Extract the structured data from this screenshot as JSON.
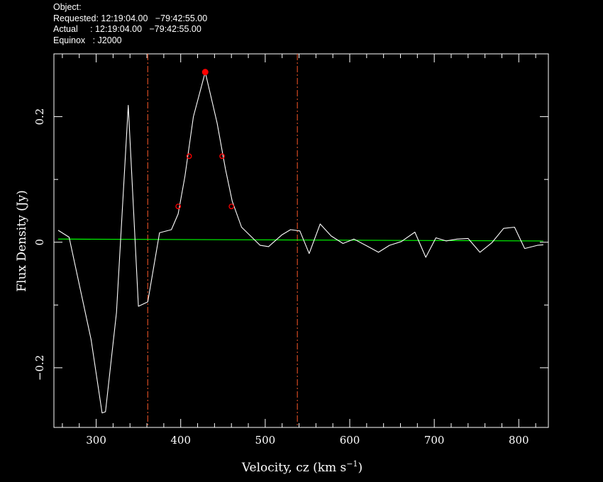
{
  "header": {
    "object": "Object:",
    "requested": "Requested: 12:19:04.00   −79:42:55.00",
    "actual": "Actual     : 12:19:04.00   −79:42:55.00",
    "equinox": "Equinox   : J2000"
  },
  "chart_data": {
    "type": "line",
    "xlabel": "Velocity, cz (km s",
    "xlabel_sup": "−1",
    "xlabel_tail": ")",
    "ylabel": "Flux Density (Jy)",
    "xlim": [
      250,
      835
    ],
    "ylim": [
      -0.295,
      0.3
    ],
    "x_ticks": [
      300,
      400,
      500,
      600,
      700,
      800
    ],
    "y_ticks": [
      {
        "value": -0.2,
        "label": "−0.2"
      },
      {
        "value": 0,
        "label": "0"
      },
      {
        "value": 0.2,
        "label": "0.2"
      }
    ],
    "background": "#000000",
    "colors": {
      "spectrum": "#ffffff",
      "baseline": "#00ff00",
      "markers": "#ff0000",
      "window": "#ff5a2a",
      "frame": "#ffffff"
    },
    "spectrum": {
      "x": [
        255,
        268,
        294,
        307,
        311,
        324,
        338,
        350,
        361,
        375,
        389,
        397,
        405,
        415,
        429,
        443,
        453,
        461,
        472,
        494,
        504,
        520,
        530,
        541,
        552,
        565,
        578,
        592,
        605,
        619,
        634,
        647,
        661,
        677,
        690,
        702,
        714,
        727,
        740,
        754,
        768,
        782,
        795,
        807,
        822,
        829
      ],
      "y": [
        0.019,
        0.008,
        -0.155,
        -0.272,
        -0.27,
        -0.112,
        0.218,
        -0.102,
        -0.095,
        0.015,
        0.02,
        0.045,
        0.105,
        0.2,
        0.271,
        0.19,
        0.116,
        0.065,
        0.024,
        -0.005,
        -0.007,
        0.012,
        0.02,
        0.018,
        -0.018,
        0.029,
        0.01,
        -0.002,
        0.005,
        -0.005,
        -0.016,
        -0.005,
        0.001,
        0.016,
        -0.024,
        0.007,
        0.002,
        0.005,
        0.006,
        -0.016,
        -0.001,
        0.022,
        0.024,
        -0.01,
        -0.005,
        -0.004
      ]
    },
    "baseline": {
      "x": [
        255,
        829
      ],
      "y": [
        0.005,
        0.002
      ]
    },
    "window_lines": [
      361,
      538
    ],
    "peak_marker": {
      "x": 429,
      "y": 0.271
    },
    "width_markers": [
      {
        "x": 397,
        "y": 0.057
      },
      {
        "x": 410,
        "y": 0.137
      },
      {
        "x": 449,
        "y": 0.137
      },
      {
        "x": 460,
        "y": 0.057
      }
    ]
  }
}
